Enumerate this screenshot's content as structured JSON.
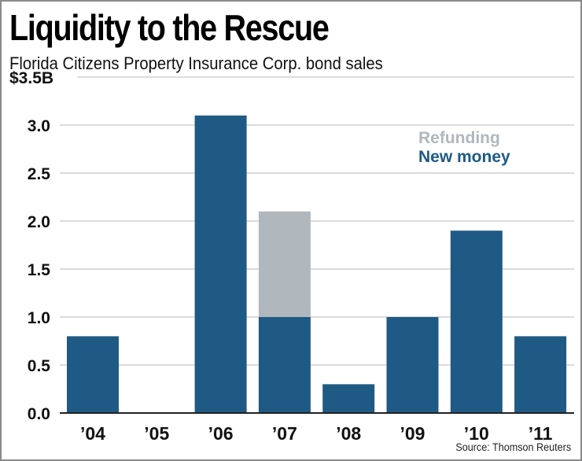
{
  "title": "Liquidity to the Rescue",
  "subtitle": "Florida Citizens Property Insurance Corp. bond sales",
  "source": "Source: Thomson Reuters",
  "colors": {
    "new_money": "#1f5a84",
    "refunding": "#b0b7bd",
    "grid": "#cfcfcf",
    "axis": "#222222"
  },
  "chart_data": {
    "type": "bar",
    "stacked": true,
    "title": "Liquidity to the Rescue",
    "subtitle": "Florida Citizens Property Insurance Corp. bond sales",
    "xlabel": "",
    "ylabel": "",
    "ylim": [
      0,
      3.5
    ],
    "yticks": [
      0,
      0.5,
      1.0,
      1.5,
      2.0,
      2.5,
      3.0,
      3.5
    ],
    "ytick_labels": [
      "0.0",
      "0.5",
      "1.0",
      "1.5",
      "2.0",
      "2.5",
      "3.0",
      "$3.5B"
    ],
    "grid": true,
    "categories": [
      "’04",
      "’05",
      "’06",
      "’07",
      "’08",
      "’09",
      "’10",
      "’11"
    ],
    "series": [
      {
        "name": "New money",
        "color": "#1f5a84",
        "values": [
          0.8,
          0,
          3.1,
          1.0,
          0.3,
          1.0,
          1.9,
          0.8
        ]
      },
      {
        "name": "Refunding",
        "color": "#b0b7bd",
        "values": [
          0,
          0,
          0,
          1.1,
          0,
          0,
          0,
          0
        ]
      }
    ],
    "legend": {
      "placement": "top-right",
      "entries": [
        "Refunding",
        "New money"
      ]
    },
    "unit": "$ billions",
    "source": "Source: Thomson Reuters"
  }
}
